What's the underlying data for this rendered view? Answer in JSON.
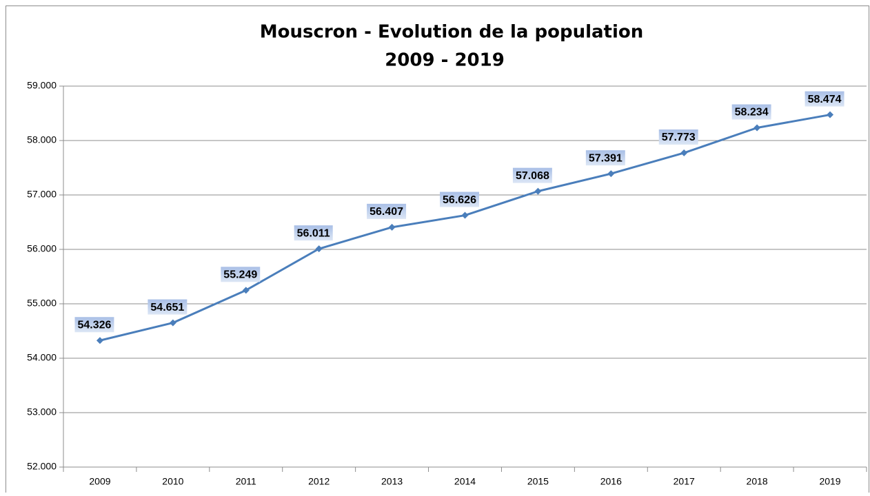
{
  "chart_data": {
    "type": "line",
    "title": "Mouscron - Evolution de la population",
    "subtitle": "2009 - 2019",
    "categories": [
      "2009",
      "2010",
      "2011",
      "2012",
      "2013",
      "2014",
      "2015",
      "2016",
      "2017",
      "2018",
      "2019"
    ],
    "series": [
      {
        "name": "Population",
        "color": "#4a7ebb",
        "values": [
          54326,
          54651,
          55249,
          56011,
          56407,
          56626,
          57068,
          57391,
          57773,
          58234,
          58474
        ],
        "value_labels": [
          "54.326",
          "54.651",
          "55.249",
          "56.011",
          "56.407",
          "56.626",
          "57.068",
          "57.391",
          "57.773",
          "58.234",
          "58.474"
        ]
      }
    ],
    "ylim": [
      52000,
      59000
    ],
    "yticks": [
      {
        "value": 52000,
        "label": "52.000"
      },
      {
        "value": 53000,
        "label": "53.000"
      },
      {
        "value": 54000,
        "label": "54.000"
      },
      {
        "value": 55000,
        "label": "55.000"
      },
      {
        "value": 56000,
        "label": "56.000"
      },
      {
        "value": 57000,
        "label": "57.000"
      },
      {
        "value": 58000,
        "label": "58.000"
      },
      {
        "value": 59000,
        "label": "59.000"
      }
    ],
    "grid": true
  }
}
